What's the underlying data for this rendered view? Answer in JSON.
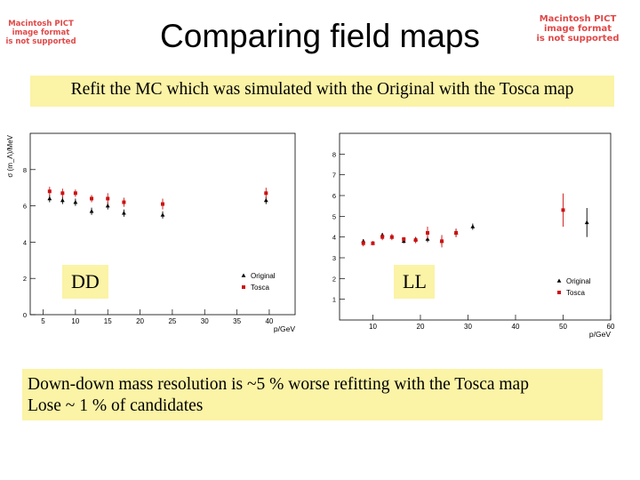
{
  "header": {
    "title": "Comparing field maps",
    "subtitle": "Refit the MC which was simulated with the Original with the Tosca map"
  },
  "placeholders": {
    "left": [
      "Macintosh PICT",
      "image format",
      "is not supported"
    ],
    "right": [
      "Macintosh PICT",
      "image format",
      "is not supported"
    ]
  },
  "summary": {
    "line1": "Down-down mass resolution is ~5 % worse refitting with the Tosca map",
    "line2": "Lose ~ 1 % of candidates"
  },
  "colors": {
    "original": "#000000",
    "tosca": "#cc1111",
    "note_bg": "#fbf3a6",
    "placeholder_text": "#e04848"
  },
  "chart_data": [
    {
      "type": "scatter",
      "tag": "DD",
      "xlabel": "p/GeV",
      "ylabel": "σ (m_Λ)/MeV",
      "xlim": [
        3,
        44
      ],
      "ylim": [
        0,
        10
      ],
      "xticks": [
        5,
        10,
        15,
        20,
        25,
        30,
        35,
        40
      ],
      "yticks": [
        0,
        2,
        4,
        6,
        8
      ],
      "legend_position": "bottom-right",
      "series": [
        {
          "name": "Original",
          "color": "#000000",
          "marker": "triangle",
          "x": [
            6,
            8,
            10,
            12.5,
            15,
            17.5,
            23.5,
            39.5
          ],
          "y": [
            6.4,
            6.3,
            6.2,
            5.7,
            6.0,
            5.6,
            5.5,
            6.3
          ],
          "err": [
            0.2,
            0.2,
            0.2,
            0.2,
            0.2,
            0.2,
            0.2,
            0.2
          ]
        },
        {
          "name": "Tosca",
          "color": "#cc1111",
          "marker": "square",
          "x": [
            6,
            8,
            10,
            12.5,
            15,
            17.5,
            23.5,
            39.5
          ],
          "y": [
            6.8,
            6.7,
            6.7,
            6.4,
            6.4,
            6.2,
            6.1,
            6.7
          ],
          "err": [
            0.25,
            0.25,
            0.2,
            0.2,
            0.3,
            0.25,
            0.3,
            0.3
          ]
        }
      ]
    },
    {
      "type": "scatter",
      "tag": "LL",
      "xlabel": "p/GeV",
      "ylabel": "σ (m_Λ)/MeV",
      "xlim": [
        3,
        60
      ],
      "ylim": [
        0,
        9
      ],
      "xticks": [
        10,
        20,
        30,
        40,
        50,
        60
      ],
      "yticks": [
        1,
        2,
        3,
        4,
        5,
        6,
        7,
        8
      ],
      "legend_position": "bottom-right",
      "series": [
        {
          "name": "Original",
          "color": "#000000",
          "marker": "triangle",
          "x": [
            8,
            10,
            12,
            14,
            16.5,
            19,
            21.5,
            24.5,
            27.5,
            31,
            55
          ],
          "y": [
            3.8,
            3.7,
            4.1,
            4.0,
            3.8,
            3.9,
            3.9,
            3.8,
            4.2,
            4.5,
            4.7
          ],
          "err": [
            0.1,
            0.1,
            0.1,
            0.1,
            0.1,
            0.1,
            0.15,
            0.2,
            0.2,
            0.15,
            0.7
          ]
        },
        {
          "name": "Tosca",
          "color": "#cc1111",
          "marker": "square",
          "x": [
            8,
            10,
            12,
            14,
            16.5,
            19,
            21.5,
            24.5,
            27.5,
            50
          ],
          "y": [
            3.7,
            3.7,
            4.0,
            4.0,
            3.9,
            3.85,
            4.2,
            3.8,
            4.2,
            5.3
          ],
          "err": [
            0.15,
            0.1,
            0.15,
            0.15,
            0.1,
            0.15,
            0.3,
            0.3,
            0.2,
            0.8
          ]
        }
      ]
    }
  ]
}
